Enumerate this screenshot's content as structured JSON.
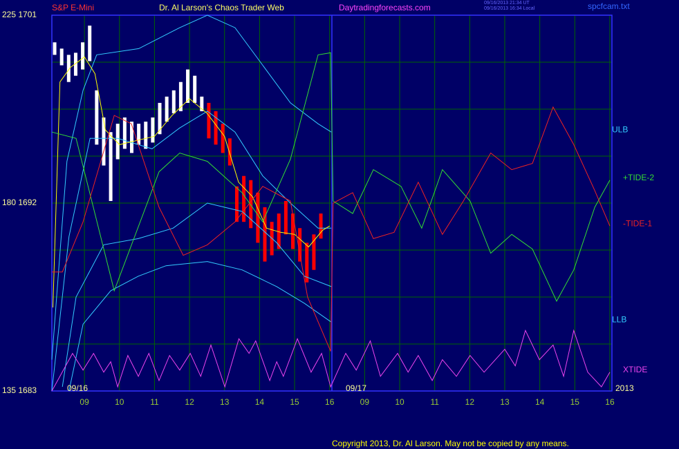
{
  "header": {
    "instrument": "S&P E-Mini",
    "site_title": "Dr. Al Larson's Chaos Trader Web",
    "url": "Daytradingforecasts.com",
    "time_ut": "09/16/2013 21:34 UT",
    "time_local": "09/16/2013 16:34 Local",
    "file": "spcfcam.txt"
  },
  "footer": {
    "copyright": "Copyright 2013, Dr. Al Larson. May not be copied by any means."
  },
  "chart_data": {
    "type": "line",
    "xlim": [
      0.07,
      16.06
    ],
    "ylim": [
      1683,
      1701
    ],
    "xticks": [
      {
        "value": 1,
        "label": "09"
      },
      {
        "value": 2,
        "label": "10"
      },
      {
        "value": 3,
        "label": "11"
      },
      {
        "value": 4,
        "label": "12"
      },
      {
        "value": 5,
        "label": "13"
      },
      {
        "value": 6,
        "label": "14"
      },
      {
        "value": 7,
        "label": "15"
      },
      {
        "value": 8,
        "label": "16"
      },
      {
        "value": 9,
        "label": "09"
      },
      {
        "value": 10,
        "label": "10"
      },
      {
        "value": 11,
        "label": "11"
      },
      {
        "value": 12,
        "label": "12"
      },
      {
        "value": 13,
        "label": "13"
      },
      {
        "value": 14,
        "label": "14"
      },
      {
        "value": 15,
        "label": "15"
      },
      {
        "value": 16,
        "label": "16"
      }
    ],
    "yticks": [
      {
        "value": 1683,
        "label": "135 1683"
      },
      {
        "value": 1692,
        "label": "180 1692"
      },
      {
        "value": 1701,
        "label": "225 1701"
      }
    ],
    "ygrid": [
      1685.25,
      1687.5,
      1689.75,
      1694.25,
      1696.5,
      1698.75
    ],
    "grid": true,
    "date_labels": [
      "09/16",
      "09/17",
      "2013"
    ],
    "price_bars": [
      {
        "color": "#ffffff",
        "x": [
          0.15,
          0.35,
          0.55,
          0.75,
          0.95,
          1.15,
          1.35,
          1.55,
          1.75,
          1.95,
          2.15,
          2.35,
          2.55,
          2.75,
          2.95,
          3.15,
          3.35,
          3.55,
          3.75,
          3.95,
          4.15,
          4.35
        ],
        "high": [
          1699.7,
          1699.4,
          1699.1,
          1699.2,
          1699.7,
          1700.5,
          1697.4,
          1696.1,
          1695.4,
          1695.8,
          1696.1,
          1695.9,
          1695.8,
          1695.9,
          1696.1,
          1696.8,
          1697.1,
          1697.4,
          1697.8,
          1698.4,
          1698.1,
          1697.1
        ],
        "low": [
          1699.1,
          1698.6,
          1697.8,
          1698.1,
          1698.4,
          1698.8,
          1694.8,
          1693.8,
          1692.1,
          1694.1,
          1694.6,
          1694.4,
          1694.8,
          1694.6,
          1694.9,
          1695.3,
          1695.9,
          1696.3,
          1696.4,
          1696.8,
          1696.8,
          1696.4
        ]
      },
      {
        "color": "#ff0000",
        "x": [
          4.55,
          4.75,
          4.95,
          5.15,
          5.35,
          5.55,
          5.75,
          5.95,
          6.15,
          6.35,
          6.55,
          6.75,
          6.95,
          7.15,
          7.35,
          7.55,
          7.75
        ],
        "high": [
          1696.8,
          1696.4,
          1695.8,
          1695.1,
          1692.8,
          1693.3,
          1693.1,
          1692.5,
          1691.8,
          1691.1,
          1691.5,
          1692.1,
          1691.5,
          1690.8,
          1690.1,
          1690.5,
          1691.5
        ],
        "low": [
          1695.1,
          1694.8,
          1694.4,
          1693.8,
          1691.1,
          1691.1,
          1690.8,
          1690.1,
          1689.2,
          1689.5,
          1689.8,
          1690.5,
          1689.8,
          1689.2,
          1688.2,
          1688.8,
          1690.3
        ]
      }
    ],
    "series": [
      {
        "name": "ULB",
        "color": "#33ccff",
        "x": [
          0.07,
          0.5,
          0.96,
          1.35,
          2.55,
          3.72,
          4.51,
          5.3,
          6.09,
          6.88,
          7.67,
          8.05
        ],
        "values": [
          1684.5,
          1694,
          1697.4,
          1699.1,
          1699.4,
          1700.4,
          1701,
          1700.4,
          1698.6,
          1696.8,
          1695.8,
          1695.4
        ]
      },
      {
        "color": "#33ccff",
        "x": [
          0.07,
          0.56,
          1.16,
          1.95,
          2.93,
          3.72,
          4.51,
          5.3,
          6.09,
          6.88,
          7.67,
          8.05
        ],
        "values": [
          1683,
          1690.4,
          1695.1,
          1695.1,
          1694.6,
          1695.6,
          1696.4,
          1695.4,
          1693.3,
          1692,
          1690.8,
          1690.8
        ]
      },
      {
        "color": "#33ccff",
        "x": [
          0.37,
          0.76,
          1.55,
          2.54,
          3.53,
          4.51,
          5.5,
          6.49,
          7.28,
          8.05
        ],
        "values": [
          1683.2,
          1687.5,
          1690,
          1690.3,
          1690.8,
          1692,
          1691.6,
          1690.1,
          1688.5,
          1688
        ]
      },
      {
        "name": "LLB",
        "color": "#33ccff",
        "x": [
          0.56,
          0.96,
          1.75,
          2.54,
          3.33,
          4.51,
          5.5,
          6.49,
          7.28,
          8.05
        ],
        "values": [
          1683,
          1686.2,
          1687.8,
          1688.5,
          1689,
          1689.2,
          1688.8,
          1688,
          1687.2,
          1686.3
        ]
      },
      {
        "color": "#ffff00",
        "x": [
          0.1,
          0.3,
          0.6,
          1.0,
          1.3,
          1.6,
          2.0,
          2.5,
          3.0,
          3.5,
          4.0,
          4.5,
          5.0,
          5.4,
          5.8,
          6.2,
          6.6,
          7.0,
          7.4,
          7.8,
          8.0
        ],
        "values": [
          1687,
          1697.8,
          1698.5,
          1699,
          1698.2,
          1695.5,
          1694.8,
          1695,
          1695.2,
          1696.2,
          1697,
          1696.3,
          1695.2,
          1693,
          1692.3,
          1690.8,
          1690.6,
          1690.5,
          1689.9,
          1690.7,
          1690.9
        ]
      },
      {
        "name": "+TIDE-2",
        "color": "#33dd33",
        "x": [
          0.07,
          0.76,
          1.85,
          3.13,
          3.72,
          4.51,
          5.5,
          6.09,
          6.88,
          7.67,
          8.03,
          8.1,
          8.66,
          9.25,
          10.04,
          10.63,
          11.22,
          12.01,
          12.6,
          13.2,
          13.79,
          14.48,
          14.97,
          15.57,
          16.0
        ],
        "values": [
          1695.4,
          1695.1,
          1687.8,
          1693.5,
          1694.4,
          1694,
          1692.5,
          1691.1,
          1694.1,
          1699.1,
          1699.2,
          1692.1,
          1691.5,
          1693.6,
          1692.8,
          1690.8,
          1693.6,
          1692.1,
          1689.6,
          1690.5,
          1689.8,
          1687.3,
          1688.8,
          1691.8,
          1693.1
        ]
      },
      {
        "name": "-TIDE-1",
        "color": "#ee2222",
        "x": [
          0.07,
          0.37,
          0.96,
          1.85,
          2.34,
          3.13,
          3.82,
          4.51,
          5.3,
          6.09,
          6.88,
          7.37,
          8.03,
          8.1,
          8.66,
          9.25,
          9.84,
          10.53,
          11.22,
          11.82,
          12.6,
          13.2,
          13.79,
          14.38,
          14.97,
          15.57,
          16.0
        ],
        "values": [
          1688.7,
          1688.7,
          1691.1,
          1696.2,
          1695.8,
          1691.8,
          1689.5,
          1690,
          1691.1,
          1692.8,
          1692.1,
          1687.5,
          1684.9,
          1692,
          1692.5,
          1690.3,
          1690.6,
          1693,
          1690.5,
          1692.1,
          1694.4,
          1693.6,
          1693.9,
          1696.6,
          1694.8,
          1692.6,
          1690.9
        ]
      },
      {
        "name": "XTIDE",
        "color": "#ee44ee",
        "x": [
          0.07,
          0.66,
          0.96,
          1.26,
          1.55,
          1.75,
          1.95,
          2.24,
          2.54,
          2.84,
          3.13,
          3.43,
          3.72,
          4.02,
          4.32,
          4.61,
          5.01,
          5.41,
          5.7,
          5.89,
          6.29,
          6.49,
          6.68,
          7.08,
          7.47,
          7.77,
          8.03,
          8.46,
          8.76,
          9.16,
          9.45,
          9.94,
          10.24,
          10.53,
          10.93,
          11.22,
          11.62,
          12.01,
          12.41,
          13.0,
          13.3,
          13.59,
          13.99,
          14.38,
          14.68,
          14.97,
          15.37,
          15.76,
          16.0
        ],
        "values": [
          1683,
          1684.8,
          1684,
          1684.8,
          1683.9,
          1684.4,
          1683.2,
          1684.7,
          1683.7,
          1684.8,
          1683.5,
          1684.7,
          1684,
          1684.8,
          1683.7,
          1685.2,
          1683.2,
          1685.5,
          1684.8,
          1685.4,
          1683.5,
          1684.4,
          1683.7,
          1685.5,
          1683.9,
          1684.8,
          1683.2,
          1684.8,
          1684,
          1685.4,
          1683.7,
          1684.8,
          1683.9,
          1684.7,
          1683.5,
          1684.5,
          1683.7,
          1684.7,
          1683.9,
          1685,
          1684.2,
          1685.9,
          1684.5,
          1685.2,
          1683.7,
          1685.9,
          1683.9,
          1683.2,
          1683.9
        ]
      }
    ]
  }
}
